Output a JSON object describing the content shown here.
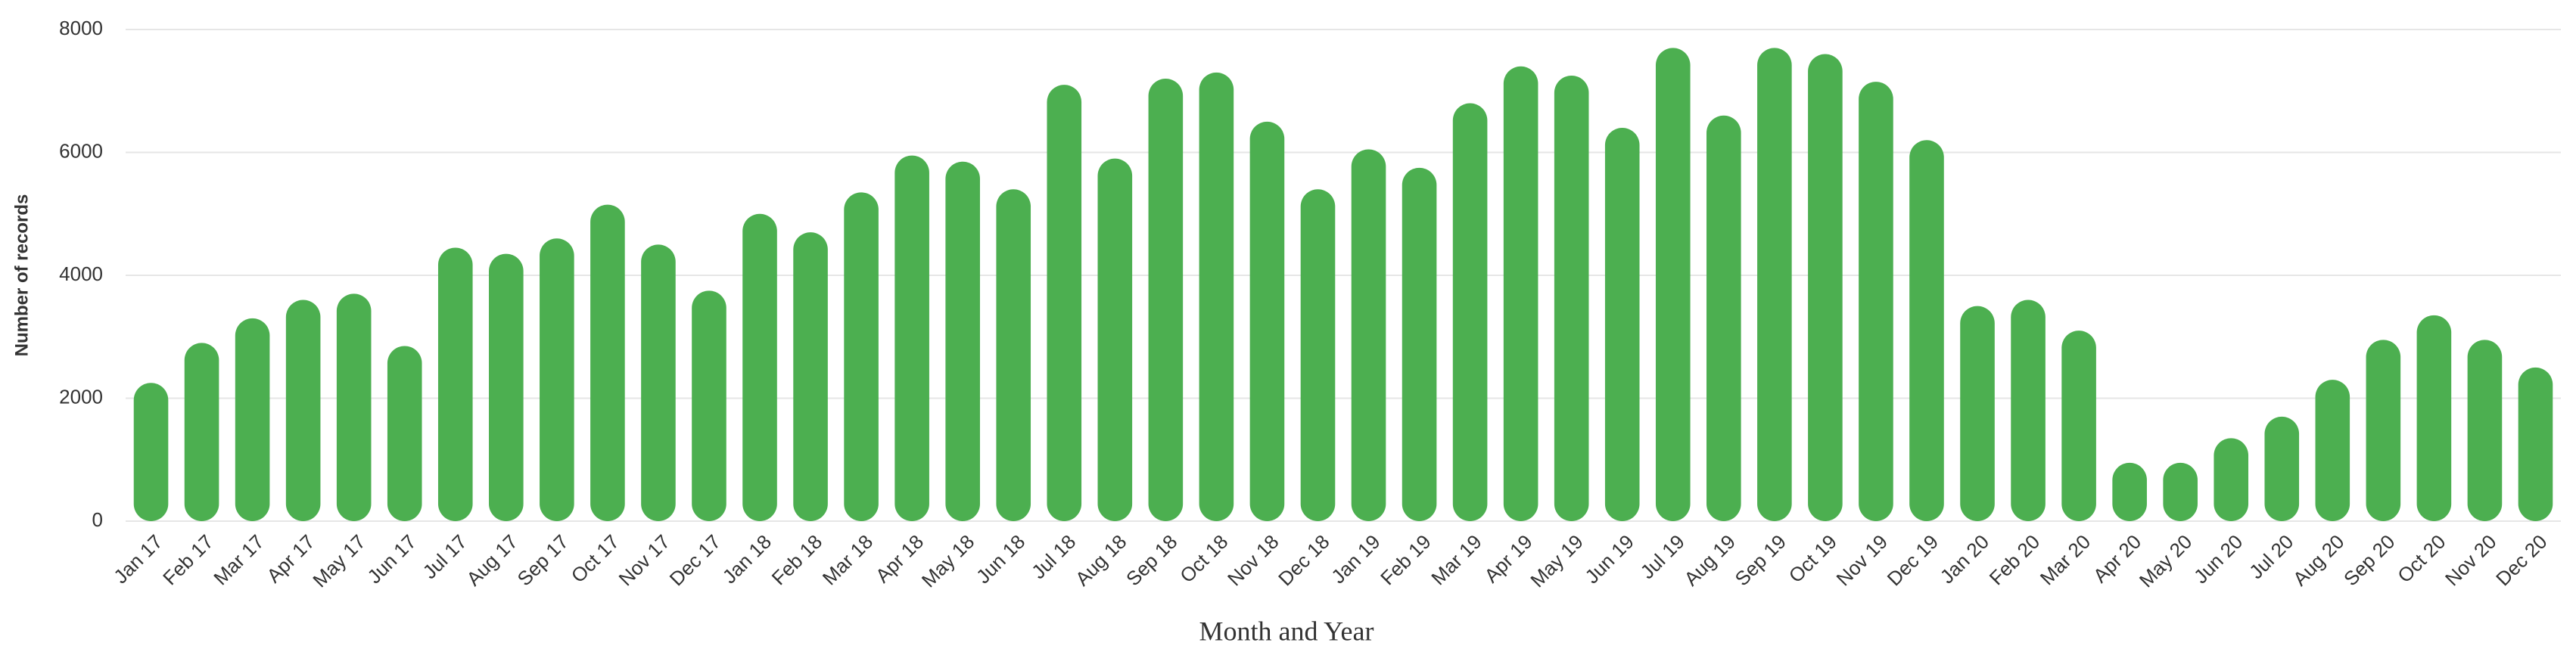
{
  "chart_data": {
    "type": "bar",
    "x_label": "Month and Year",
    "y_label": "Number of records",
    "categories": [
      "Jan 17",
      "Feb 17",
      "Mar 17",
      "Apr 17",
      "May 17",
      "Jun 17",
      "Jul 17",
      "Aug 17",
      "Sep 17",
      "Oct 17",
      "Nov 17",
      "Dec 17",
      "Jan 18",
      "Feb 18",
      "Mar 18",
      "Apr 18",
      "May 18",
      "Jun 18",
      "Jul 18",
      "Aug 18",
      "Sep 18",
      "Oct 18",
      "Nov 18",
      "Dec 18",
      "Jan 19",
      "Feb 19",
      "Mar 19",
      "Apr 19",
      "May 19",
      "Jun 19",
      "Jul 19",
      "Aug 19",
      "Sep 19",
      "Oct 19",
      "Nov 19",
      "Dec 19",
      "Jan 20",
      "Feb 20",
      "Mar 20",
      "Apr 20",
      "May 20",
      "Jun 20",
      "Jul 20",
      "Aug 20",
      "Sep 20",
      "Oct 20",
      "Nov 20",
      "Dec 20"
    ],
    "values": [
      2250,
      2900,
      3300,
      3600,
      3700,
      2850,
      4450,
      4350,
      4600,
      5150,
      4500,
      3750,
      5000,
      4700,
      5350,
      5950,
      5850,
      5400,
      7100,
      5900,
      7200,
      7300,
      6500,
      5400,
      6050,
      5750,
      6800,
      7400,
      7250,
      6400,
      7700,
      6600,
      7700,
      7600,
      7150,
      6200,
      3500,
      3600,
      3100,
      950,
      950,
      1350,
      1700,
      2300,
      2950,
      3350,
      2950,
      2500
    ],
    "color": "#4caf50",
    "ylim": [
      0,
      8000
    ],
    "yticks": [
      0,
      2000,
      4000,
      6000,
      8000
    ],
    "grid": true
  }
}
